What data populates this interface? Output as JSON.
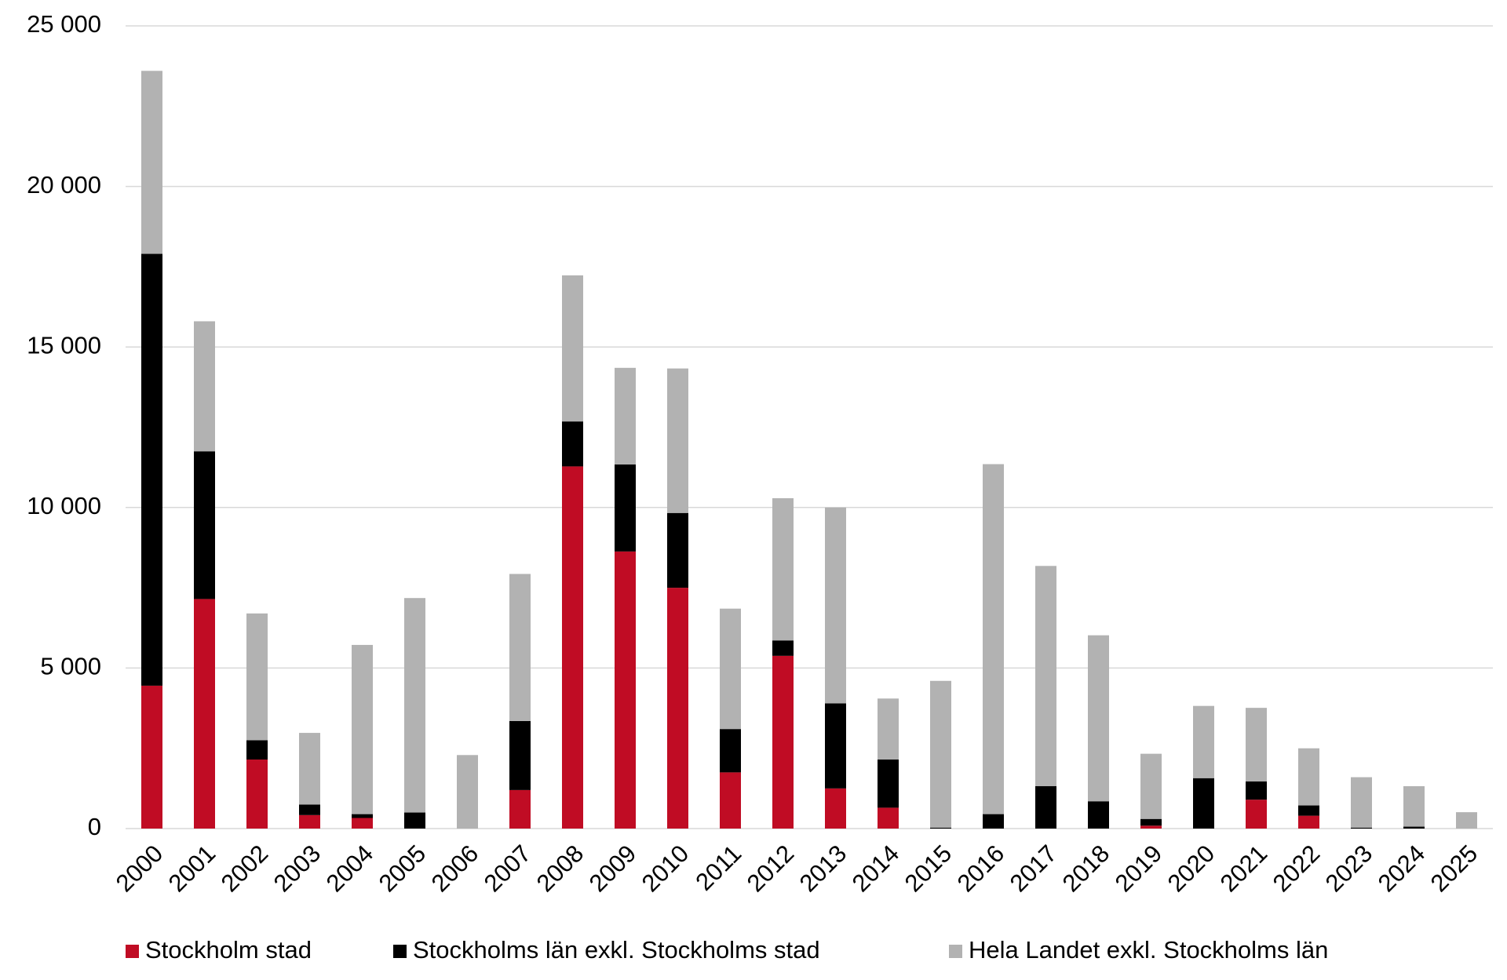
{
  "chart_data": {
    "type": "stacked_bar",
    "categories": [
      "2000",
      "2001",
      "2002",
      "2003",
      "2004",
      "2005",
      "2006",
      "2007",
      "2008",
      "2009",
      "2010",
      "2011",
      "2012",
      "2013",
      "2014",
      "2015",
      "2016",
      "2017",
      "2018",
      "2019",
      "2020",
      "2021",
      "2022",
      "2023",
      "2024",
      "2025"
    ],
    "series": [
      {
        "name": "Stockholm stad",
        "color": "#c00c24",
        "values": [
          4450,
          7150,
          2150,
          420,
          330,
          0,
          0,
          1200,
          11280,
          8630,
          7500,
          1750,
          5380,
          1250,
          650,
          0,
          0,
          0,
          0,
          90,
          0,
          900,
          400,
          0,
          0,
          0
        ]
      },
      {
        "name": "Stockholms län exkl. Stockholms stad",
        "color": "#000000",
        "values": [
          13450,
          4600,
          600,
          330,
          120,
          500,
          0,
          2150,
          1400,
          2710,
          2330,
          1350,
          480,
          2650,
          1500,
          30,
          450,
          1320,
          850,
          210,
          1570,
          570,
          320,
          30,
          60,
          0
        ]
      },
      {
        "name": "Hela Landet exkl. Stockholms län",
        "color": "#b2b2b2",
        "values": [
          5700,
          4050,
          3950,
          2230,
          5270,
          6680,
          2290,
          4580,
          4550,
          3010,
          4500,
          3750,
          4430,
          6100,
          1900,
          4570,
          10900,
          6860,
          5170,
          2030,
          2250,
          2290,
          1780,
          1570,
          1260,
          510
        ]
      }
    ],
    "ylim": [
      0,
      25000
    ],
    "yticks": [
      0,
      {
        "value": 5000,
        "label": "5 000"
      },
      {
        "value": 10000,
        "label": "10 000"
      },
      {
        "value": 15000,
        "label": "15 000"
      },
      {
        "value": 20000,
        "label": "20 000"
      },
      {
        "value": 25000,
        "label": "25 000"
      }
    ],
    "grid": true,
    "legend": "bottom"
  }
}
